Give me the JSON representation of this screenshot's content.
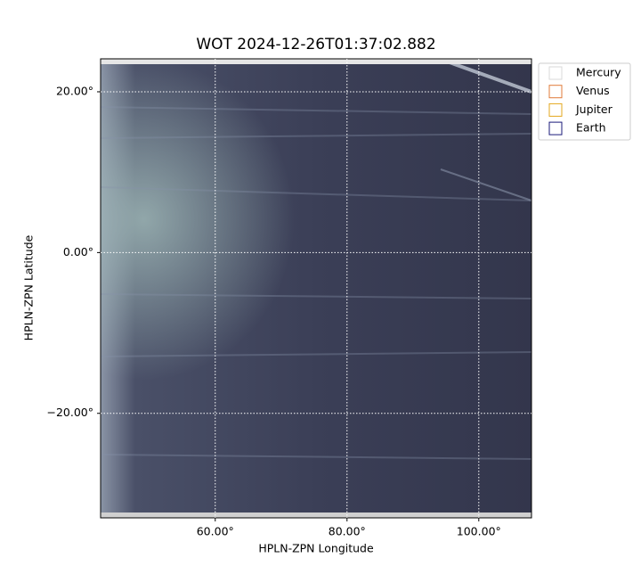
{
  "chart_data": {
    "type": "image",
    "title": "WOT 2024-12-26T01:37:02.882",
    "x_label": "HPLN-ZPN Longitude",
    "y_label": "HPLN-ZPN Latitude",
    "xlim": [
      42.6,
      108.0
    ],
    "ylim": [
      -33.0,
      24.1
    ],
    "xticks": [
      {
        "value": 60,
        "label": "60.00°"
      },
      {
        "value": 80,
        "label": "80.00°"
      },
      {
        "value": 100,
        "label": "100.00°"
      }
    ],
    "yticks": [
      {
        "value": -20,
        "label": "−20.00°"
      },
      {
        "value": 0,
        "label": "0.00°"
      },
      {
        "value": 20,
        "label": "20.00°"
      }
    ],
    "grid": true,
    "legend": "outside-upper-right",
    "series": [
      {
        "name": "Mercury",
        "color": "#d8d8d8"
      },
      {
        "name": "Venus",
        "color": "#e07b39"
      },
      {
        "name": "Jupiter",
        "color": "#e3a71c"
      },
      {
        "name": "Earth",
        "color": "#1a1a7a"
      }
    ]
  }
}
